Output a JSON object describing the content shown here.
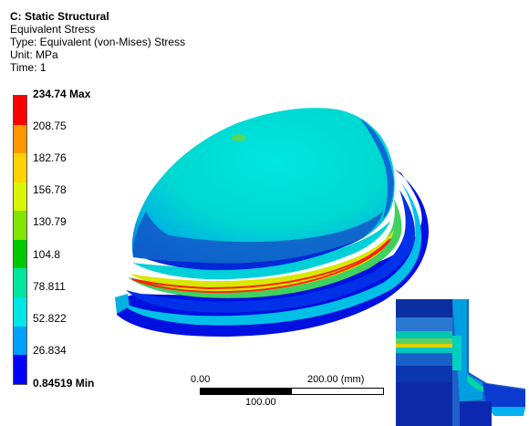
{
  "header": {
    "title": "C: Static Structural",
    "result": "Equivalent Stress",
    "type": "Type: Equivalent (von-Mises) Stress",
    "unit": "Unit: MPa",
    "time": "Time: 1"
  },
  "legend": {
    "max_label": "234.74 Max",
    "min_label": "0.84519 Min",
    "levels": [
      "208.75",
      "182.76",
      "156.78",
      "130.79",
      "104.8",
      "78.811",
      "52.822",
      "26.834"
    ],
    "colors": [
      "#ff0000",
      "#ff9600",
      "#ffd200",
      "#d9f500",
      "#80e600",
      "#00c800",
      "#00e6a0",
      "#00e6e6",
      "#00a0ff",
      "#0000ff"
    ]
  },
  "scale_bar": {
    "left_label": "0.00",
    "right_label": "200.00 (mm)",
    "mid_label": "100.00"
  }
}
